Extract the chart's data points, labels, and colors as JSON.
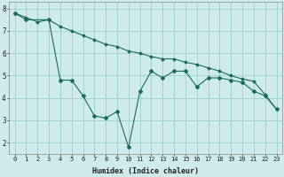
{
  "line1_x": [
    0,
    1,
    3,
    4,
    5,
    6,
    7,
    8,
    9,
    10,
    11,
    12,
    13,
    14,
    15,
    16,
    17,
    18,
    19,
    20,
    21,
    22,
    23
  ],
  "line1_y": [
    7.8,
    7.5,
    7.5,
    4.8,
    4.8,
    4.1,
    3.2,
    3.1,
    3.4,
    1.8,
    4.3,
    5.2,
    4.9,
    5.2,
    5.2,
    4.5,
    4.9,
    4.9,
    4.8,
    4.7,
    4.3,
    4.1,
    3.5
  ],
  "line2_x": [
    0,
    1,
    2,
    3,
    4,
    5,
    6,
    7,
    8,
    9,
    10,
    11,
    12,
    13,
    14,
    15,
    16,
    17,
    18,
    19,
    20,
    21,
    22,
    23
  ],
  "line2_y": [
    7.8,
    7.6,
    7.4,
    7.5,
    7.2,
    7.0,
    6.8,
    6.6,
    6.4,
    6.3,
    6.1,
    6.0,
    5.85,
    5.75,
    5.75,
    5.6,
    5.5,
    5.35,
    5.2,
    5.0,
    4.85,
    4.75,
    4.15,
    3.5
  ],
  "color": "#1a6b5a",
  "background": "#ceeaea",
  "grid_color": "#9ecece",
  "xlabel": "Humidex (Indice chaleur)",
  "xlim": [
    -0.5,
    23.5
  ],
  "ylim": [
    1.5,
    8.3
  ],
  "xticks": [
    0,
    1,
    2,
    3,
    4,
    5,
    6,
    7,
    8,
    9,
    10,
    11,
    12,
    13,
    14,
    15,
    16,
    17,
    18,
    19,
    20,
    21,
    22,
    23
  ],
  "yticks": [
    2,
    3,
    4,
    5,
    6,
    7,
    8
  ],
  "xlabel_fontsize": 6.0,
  "tick_fontsize": 5.0
}
